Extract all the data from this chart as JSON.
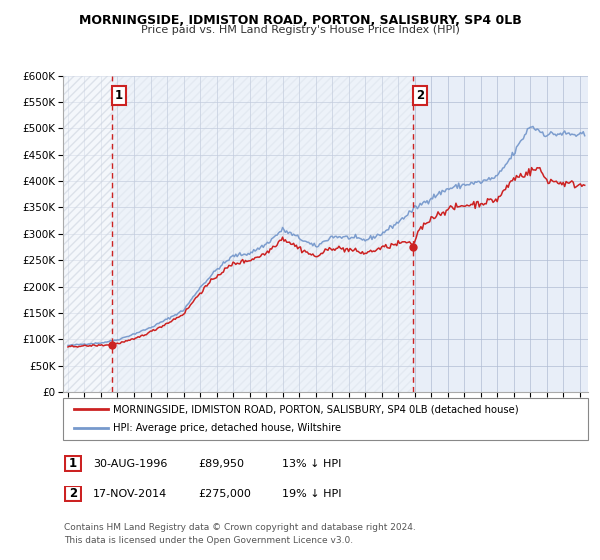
{
  "title": "MORNINGSIDE, IDMISTON ROAD, PORTON, SALISBURY, SP4 0LB",
  "subtitle": "Price paid vs. HM Land Registry's House Price Index (HPI)",
  "background_color": "#ffffff",
  "plot_background": "#e8eef8",
  "hpi_color": "#7799cc",
  "price_color": "#cc2222",
  "hatch_color": "#c8d0dc",
  "ylim": [
    0,
    600000
  ],
  "yticks": [
    0,
    50000,
    100000,
    150000,
    200000,
    250000,
    300000,
    350000,
    400000,
    450000,
    500000,
    550000,
    600000
  ],
  "ytick_labels": [
    "£0",
    "£50K",
    "£100K",
    "£150K",
    "£200K",
    "£250K",
    "£300K",
    "£350K",
    "£400K",
    "£450K",
    "£500K",
    "£550K",
    "£600K"
  ],
  "xlim_start": 1993.7,
  "xlim_end": 2025.5,
  "xtick_years": [
    1994,
    1995,
    1996,
    1997,
    1998,
    1999,
    2000,
    2001,
    2002,
    2003,
    2004,
    2005,
    2006,
    2007,
    2008,
    2009,
    2010,
    2011,
    2012,
    2013,
    2014,
    2015,
    2016,
    2017,
    2018,
    2019,
    2020,
    2021,
    2022,
    2023,
    2024,
    2025
  ],
  "transaction1_date": 1996.66,
  "transaction1_price": 89950,
  "transaction1_label": "1",
  "transaction2_date": 2014.88,
  "transaction2_price": 275000,
  "transaction2_label": "2",
  "legend_line1": "MORNINGSIDE, IDMISTON ROAD, PORTON, SALISBURY, SP4 0LB (detached house)",
  "legend_line2": "HPI: Average price, detached house, Wiltshire",
  "table_row1": [
    "1",
    "30-AUG-1996",
    "£89,950",
    "13% ↓ HPI"
  ],
  "table_row2": [
    "2",
    "17-NOV-2014",
    "£275,000",
    "19% ↓ HPI"
  ],
  "footnote1": "Contains HM Land Registry data © Crown copyright and database right 2024.",
  "footnote2": "This data is licensed under the Open Government Licence v3.0."
}
